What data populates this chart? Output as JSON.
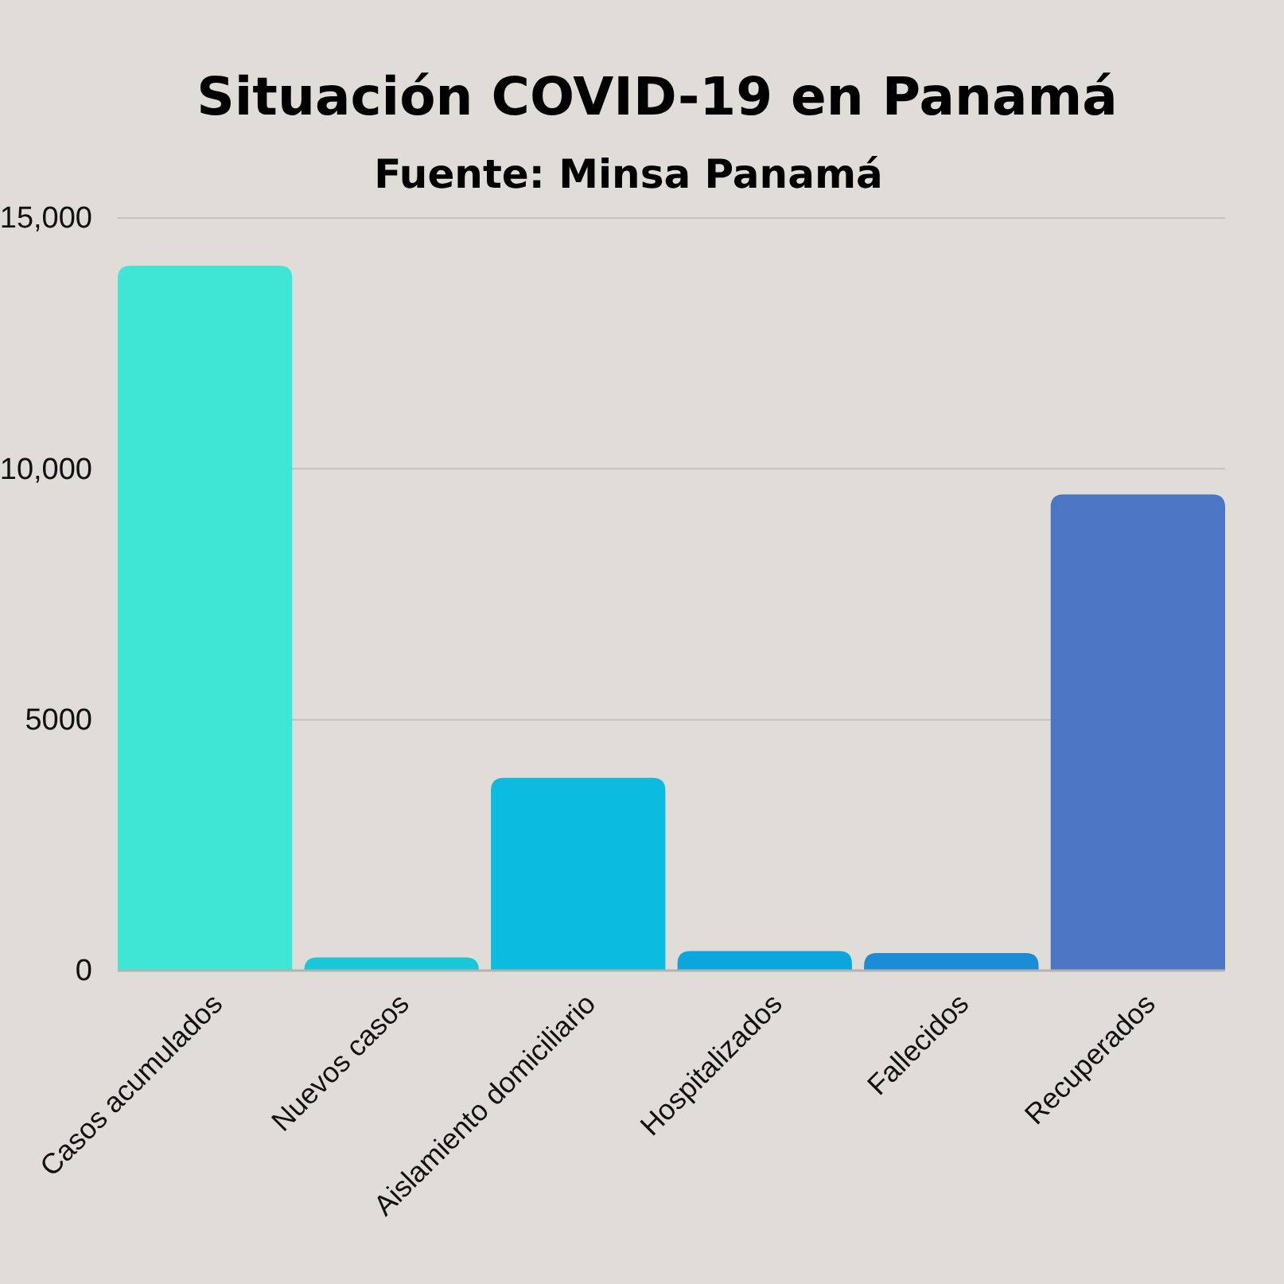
{
  "chart_data": {
    "type": "bar",
    "title": "Situación COVID-19 en Panamá",
    "subtitle": "Fuente: Minsa Panamá",
    "categories": [
      "Casos acumulados",
      "Nuevos casos",
      "Aislamiento domiciliario",
      "Hospitalizados",
      "Fallecidos",
      "Recuperados"
    ],
    "values": [
      14050,
      260,
      3840,
      390,
      350,
      9490
    ],
    "colors": [
      "#3fe6d6",
      "#17c8d9",
      "#0bbce0",
      "#0aa6dd",
      "#1a8bd5",
      "#4a76c4"
    ],
    "ylim": [
      0,
      15000
    ],
    "yticks": [
      0,
      {
        "value": 5000,
        "label": "5000"
      },
      {
        "value": 10000,
        "label": "10,000"
      },
      {
        "value": 15000,
        "label": "15,000"
      }
    ],
    "grid": "y"
  }
}
